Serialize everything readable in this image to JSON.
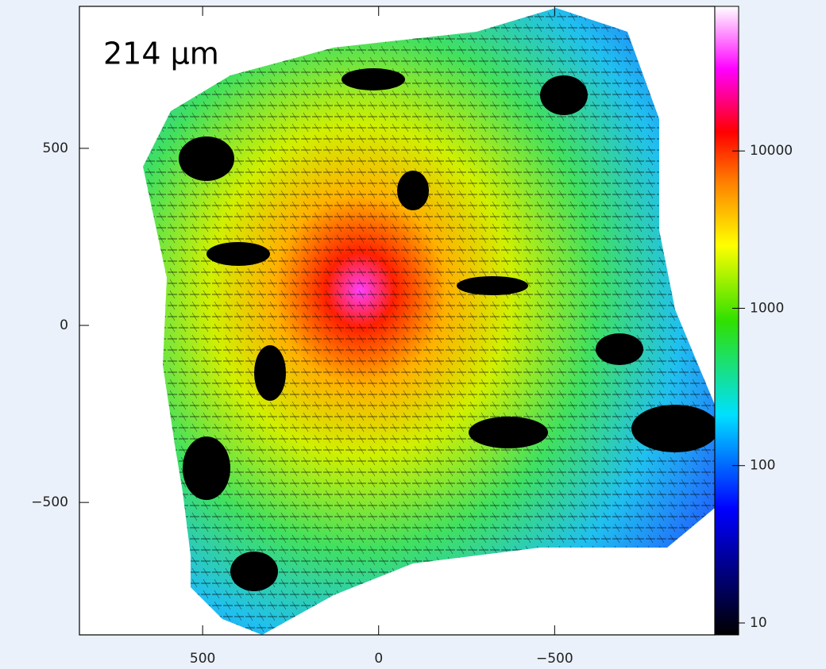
{
  "chart_data": {
    "type": "heatmap",
    "annotation": "214 µm",
    "xlim": [
      850,
      -955
    ],
    "xticks": [
      500,
      0,
      {
        "value": -500,
        "label": "−500"
      }
    ],
    "ylim": [
      -874,
      901
    ],
    "yticks": [
      {
        "value": -500,
        "label": "−500"
      },
      0,
      500
    ],
    "colorbar": {
      "log": true,
      "lim": [
        8.4,
        83000
      ],
      "ticks": [
        10,
        100,
        1000,
        10000
      ]
    }
  }
}
